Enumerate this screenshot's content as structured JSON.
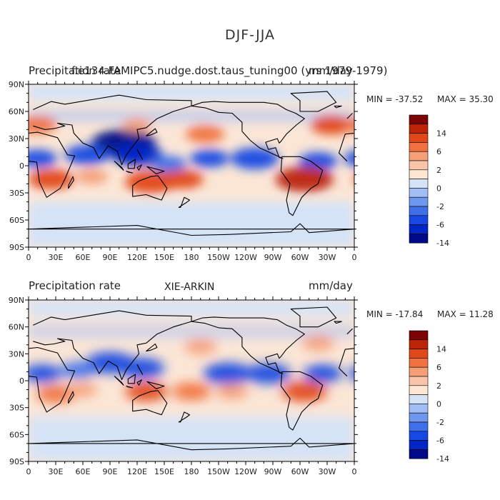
{
  "figure_title": "DJF-JJA",
  "colors": {
    "ocean_neutral": "#fbe6d6",
    "coastline": "#000000",
    "colorbar": [
      "#000a87",
      "#0026c6",
      "#1749e2",
      "#3f70ea",
      "#6e97f0",
      "#a3bdf5",
      "#d5e3f7",
      "#fde6d2",
      "#f9c4a7",
      "#f59e77",
      "#f0723f",
      "#e24717",
      "#bb2407",
      "#7c0404"
    ]
  },
  "panels": [
    {
      "id": "top",
      "left_title": "Precipitation rate",
      "center_title": "f.e134.FAMIPC5.nudge.dost.taus_tuning00 (yrs 1979-1979)",
      "units": "mm/day",
      "min_label": "MIN = -37.52",
      "max_label": "MAX =  35.30",
      "colorbar_ticks": [
        "14",
        "6",
        "2",
        "0",
        "-2",
        "-6",
        "-14"
      ]
    },
    {
      "id": "bottom",
      "left_title": "Precipitation rate",
      "center_title": "XIE-ARKIN",
      "units": "mm/day",
      "min_label": "MIN = -17.84",
      "max_label": "MAX =  11.28",
      "colorbar_ticks": [
        "14",
        "6",
        "2",
        "0",
        "-2",
        "-6",
        "-14"
      ]
    }
  ],
  "chart_data": [
    {
      "type": "heatmap",
      "title": "f.e134.FAMIPC5.nudge.dost.taus_tuning00 (yrs 1979-1979)",
      "variable": "Precipitation rate",
      "units": "mm/day",
      "x_ticks": [
        "0",
        "30E",
        "60E",
        "90E",
        "120E",
        "150E",
        "180",
        "150W",
        "120W",
        "90W",
        "60W",
        "30W",
        "0"
      ],
      "y_ticks": [
        "90N",
        "60N",
        "30N",
        "0",
        "30S",
        "60S",
        "90S"
      ],
      "xlim": [
        0,
        360
      ],
      "ylim": [
        -90,
        90
      ],
      "min": -37.52,
      "max": 35.3,
      "levels": [
        -14,
        -6,
        -2,
        0,
        2,
        6,
        14
      ],
      "anomalies": [
        {
          "lon": 105,
          "lat": 25,
          "value": -14
        },
        {
          "lon": 120,
          "lat": 12,
          "value": -10
        },
        {
          "lon": 65,
          "lat": 12,
          "value": -8
        },
        {
          "lon": 10,
          "lat": 8,
          "value": -6
        },
        {
          "lon": 250,
          "lat": 8,
          "value": -9
        },
        {
          "lon": 200,
          "lat": 8,
          "value": -6
        },
        {
          "lon": 320,
          "lat": 5,
          "value": -6
        },
        {
          "lon": 155,
          "lat": 2,
          "value": -5
        },
        {
          "lon": 25,
          "lat": -15,
          "value": 8
        },
        {
          "lon": 135,
          "lat": -18,
          "value": 10
        },
        {
          "lon": 170,
          "lat": -15,
          "value": 7
        },
        {
          "lon": 305,
          "lat": -15,
          "value": 12
        },
        {
          "lon": 70,
          "lat": -12,
          "value": 4
        },
        {
          "lon": 195,
          "lat": 35,
          "value": 6
        },
        {
          "lon": 335,
          "lat": 45,
          "value": 7
        },
        {
          "lon": 10,
          "lat": 45,
          "value": 6
        },
        {
          "lon": 120,
          "lat": 45,
          "value": 3
        }
      ]
    },
    {
      "type": "heatmap",
      "title": "XIE-ARKIN",
      "variable": "Precipitation rate",
      "units": "mm/day",
      "x_ticks": [
        "0",
        "30E",
        "60E",
        "90E",
        "120E",
        "150E",
        "180",
        "150W",
        "120W",
        "90W",
        "60W",
        "30W",
        "0"
      ],
      "y_ticks": [
        "90N",
        "60N",
        "30N",
        "0",
        "30S",
        "60S",
        "90S"
      ],
      "xlim": [
        0,
        360
      ],
      "ylim": [
        -90,
        90
      ],
      "min": -17.84,
      "max": 11.28,
      "levels": [
        -14,
        -6,
        -2,
        0,
        2,
        6,
        14
      ],
      "anomalies": [
        {
          "lon": 90,
          "lat": 20,
          "value": -9
        },
        {
          "lon": 125,
          "lat": 14,
          "value": -8
        },
        {
          "lon": 55,
          "lat": 12,
          "value": -5
        },
        {
          "lon": 15,
          "lat": 8,
          "value": -6
        },
        {
          "lon": 220,
          "lat": 8,
          "value": -9
        },
        {
          "lon": 265,
          "lat": 8,
          "value": -8
        },
        {
          "lon": 325,
          "lat": 8,
          "value": -6
        },
        {
          "lon": 30,
          "lat": -15,
          "value": 6
        },
        {
          "lon": 130,
          "lat": -12,
          "value": 7
        },
        {
          "lon": 180,
          "lat": -12,
          "value": 6
        },
        {
          "lon": 225,
          "lat": -12,
          "value": 4
        },
        {
          "lon": 305,
          "lat": -12,
          "value": 8
        },
        {
          "lon": 190,
          "lat": 38,
          "value": 4
        },
        {
          "lon": 320,
          "lat": 42,
          "value": 4
        },
        {
          "lon": 60,
          "lat": -10,
          "value": 3
        }
      ]
    }
  ]
}
